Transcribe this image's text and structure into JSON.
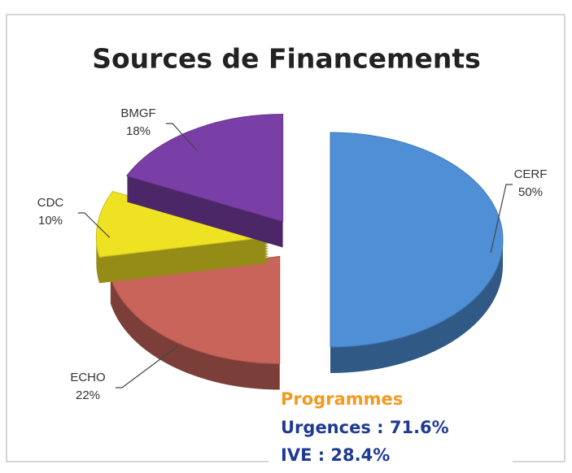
{
  "chart_data": {
    "type": "pie",
    "title": "Sources de Financements",
    "categories": [
      "CERF",
      "ECHO",
      "CDC",
      "BMGF"
    ],
    "values": [
      50,
      22,
      10,
      18
    ],
    "value_labels": [
      "50%",
      "22%",
      "10%",
      "18%"
    ],
    "colors": [
      "#4f8fd6",
      "#c8645a",
      "#eee223",
      "#7a3fa6"
    ],
    "annotations": [
      "Programmes",
      "Urgences : 71.6%",
      "IVE : 28.4%"
    ]
  }
}
